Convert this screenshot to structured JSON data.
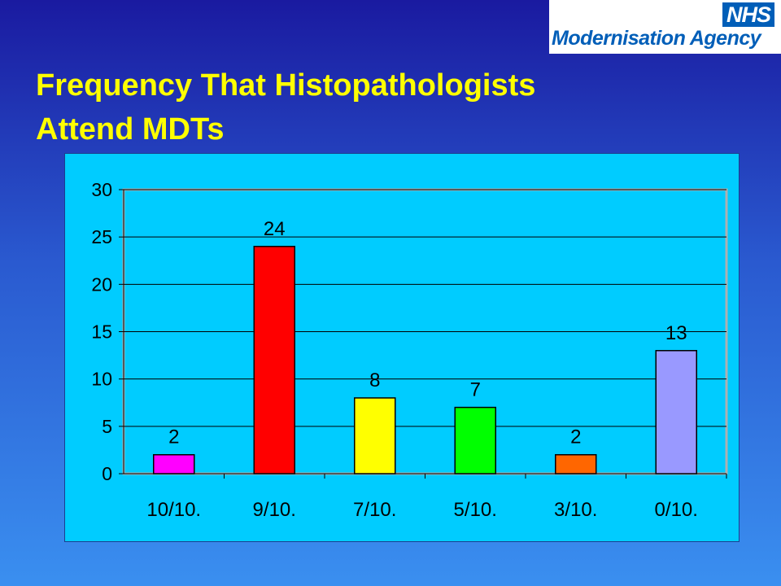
{
  "logo": {
    "nhs": "NHS",
    "name": "Modernisation Agency"
  },
  "title": "Frequency That Histopathologists Attend MDTs",
  "chart_data": {
    "type": "bar",
    "categories": [
      "10/10.",
      "9/10.",
      "7/10.",
      "5/10.",
      "3/10.",
      "0/10."
    ],
    "values": [
      2,
      24,
      8,
      7,
      2,
      13
    ],
    "colors": [
      "#ff00ff",
      "#ff0000",
      "#ffff00",
      "#00ff00",
      "#ff6600",
      "#9999ff"
    ],
    "ylim": [
      0,
      30
    ],
    "yticks": [
      0,
      5,
      10,
      15,
      20,
      25,
      30
    ],
    "grid": true,
    "data_labels": true,
    "plot_background": "#00ccff"
  }
}
